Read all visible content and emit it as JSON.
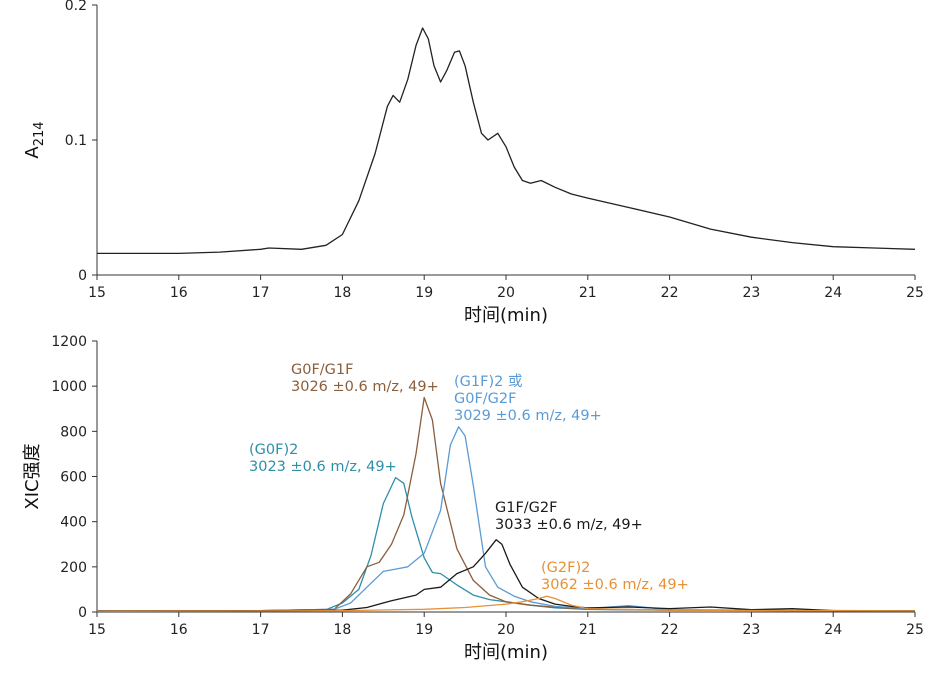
{
  "chart_data": [
    {
      "type": "line",
      "title": "",
      "xlabel": "时间(min)",
      "ylabel": "A214",
      "ylabel_main": "A",
      "ylabel_sub": "214",
      "xlim": [
        15,
        25
      ],
      "ylim": [
        0,
        0.2
      ],
      "xticks": [
        15,
        16,
        17,
        18,
        19,
        20,
        21,
        22,
        23,
        24,
        25
      ],
      "yticks": [
        0,
        0.1,
        0.2
      ],
      "ytick_labels": [
        "0",
        "0.1",
        "0.2"
      ],
      "grid": false,
      "series": [
        {
          "color": "#222222",
          "points": [
            [
              15,
              0.016
            ],
            [
              16,
              0.016
            ],
            [
              16.5,
              0.017
            ],
            [
              17,
              0.019
            ],
            [
              17.1,
              0.02
            ],
            [
              17.5,
              0.019
            ],
            [
              17.8,
              0.022
            ],
            [
              18,
              0.03
            ],
            [
              18.2,
              0.055
            ],
            [
              18.4,
              0.09
            ],
            [
              18.55,
              0.125
            ],
            [
              18.62,
              0.133
            ],
            [
              18.7,
              0.128
            ],
            [
              18.8,
              0.145
            ],
            [
              18.9,
              0.17
            ],
            [
              18.98,
              0.183
            ],
            [
              19.05,
              0.175
            ],
            [
              19.12,
              0.155
            ],
            [
              19.2,
              0.143
            ],
            [
              19.28,
              0.152
            ],
            [
              19.37,
              0.165
            ],
            [
              19.43,
              0.166
            ],
            [
              19.5,
              0.155
            ],
            [
              19.6,
              0.128
            ],
            [
              19.7,
              0.105
            ],
            [
              19.78,
              0.1
            ],
            [
              19.9,
              0.105
            ],
            [
              20,
              0.095
            ],
            [
              20.1,
              0.08
            ],
            [
              20.2,
              0.07
            ],
            [
              20.3,
              0.068
            ],
            [
              20.43,
              0.07
            ],
            [
              20.6,
              0.065
            ],
            [
              20.8,
              0.06
            ],
            [
              21,
              0.057
            ],
            [
              21.5,
              0.05
            ],
            [
              22,
              0.043
            ],
            [
              22.5,
              0.034
            ],
            [
              23,
              0.028
            ],
            [
              23.5,
              0.024
            ],
            [
              24,
              0.021
            ],
            [
              24.5,
              0.02
            ],
            [
              25,
              0.019
            ]
          ]
        }
      ]
    },
    {
      "type": "line",
      "title": "",
      "xlabel": "时间(min)",
      "ylabel": "XIC强度",
      "xlim": [
        15,
        25
      ],
      "ylim": [
        0,
        1200
      ],
      "xticks": [
        15,
        16,
        17,
        18,
        19,
        20,
        21,
        22,
        23,
        24,
        25
      ],
      "yticks": [
        0,
        200,
        400,
        600,
        800,
        1000,
        1200
      ],
      "grid": false,
      "series": [
        {
          "color": "#2e8fa8",
          "points": [
            [
              15,
              5
            ],
            [
              17,
              6
            ],
            [
              17.8,
              10
            ],
            [
              18,
              40
            ],
            [
              18.2,
              100
            ],
            [
              18.35,
              250
            ],
            [
              18.5,
              480
            ],
            [
              18.65,
              595
            ],
            [
              18.75,
              570
            ],
            [
              18.85,
              420
            ],
            [
              19,
              240
            ],
            [
              19.1,
              175
            ],
            [
              19.2,
              170
            ],
            [
              19.4,
              120
            ],
            [
              19.6,
              75
            ],
            [
              19.8,
              55
            ],
            [
              20,
              45
            ],
            [
              20.3,
              30
            ],
            [
              20.6,
              18
            ],
            [
              21,
              12
            ],
            [
              22,
              8
            ],
            [
              25,
              5
            ]
          ]
        },
        {
          "color": "#8b5e3c",
          "points": [
            [
              15,
              5
            ],
            [
              17,
              6
            ],
            [
              17.9,
              12
            ],
            [
              18.1,
              80
            ],
            [
              18.3,
              200
            ],
            [
              18.45,
              220
            ],
            [
              18.6,
              300
            ],
            [
              18.75,
              430
            ],
            [
              18.9,
              700
            ],
            [
              19,
              950
            ],
            [
              19.1,
              850
            ],
            [
              19.2,
              570
            ],
            [
              19.4,
              280
            ],
            [
              19.6,
              140
            ],
            [
              19.8,
              75
            ],
            [
              20,
              45
            ],
            [
              20.3,
              30
            ],
            [
              20.7,
              18
            ],
            [
              21,
              12
            ],
            [
              22,
              9
            ],
            [
              25,
              5
            ]
          ]
        },
        {
          "color": "#5b9bd5",
          "points": [
            [
              15,
              5
            ],
            [
              17,
              6
            ],
            [
              17.9,
              12
            ],
            [
              18.1,
              40
            ],
            [
              18.3,
              110
            ],
            [
              18.5,
              180
            ],
            [
              18.65,
              190
            ],
            [
              18.8,
              200
            ],
            [
              19,
              260
            ],
            [
              19.2,
              450
            ],
            [
              19.32,
              740
            ],
            [
              19.42,
              820
            ],
            [
              19.5,
              780
            ],
            [
              19.6,
              560
            ],
            [
              19.75,
              200
            ],
            [
              19.9,
              110
            ],
            [
              20.1,
              70
            ],
            [
              20.3,
              45
            ],
            [
              20.6,
              25
            ],
            [
              21,
              15
            ],
            [
              21.5,
              28
            ],
            [
              22,
              10
            ],
            [
              25,
              5
            ]
          ]
        },
        {
          "color": "#1a1a1a",
          "points": [
            [
              15,
              5
            ],
            [
              17,
              6
            ],
            [
              18,
              8
            ],
            [
              18.3,
              20
            ],
            [
              18.6,
              50
            ],
            [
              18.9,
              75
            ],
            [
              19,
              100
            ],
            [
              19.2,
              110
            ],
            [
              19.4,
              170
            ],
            [
              19.6,
              200
            ],
            [
              19.75,
              260
            ],
            [
              19.88,
              320
            ],
            [
              19.95,
              300
            ],
            [
              20.05,
              210
            ],
            [
              20.2,
              110
            ],
            [
              20.4,
              60
            ],
            [
              20.6,
              35
            ],
            [
              20.8,
              25
            ],
            [
              21,
              18
            ],
            [
              21.5,
              22
            ],
            [
              22,
              15
            ],
            [
              22.5,
              22
            ],
            [
              23,
              10
            ],
            [
              23.5,
              15
            ],
            [
              24,
              6
            ],
            [
              25,
              5
            ]
          ]
        },
        {
          "color": "#e69138",
          "points": [
            [
              15,
              4
            ],
            [
              17,
              5
            ],
            [
              18,
              6
            ],
            [
              19,
              12
            ],
            [
              19.5,
              20
            ],
            [
              20,
              35
            ],
            [
              20.2,
              45
            ],
            [
              20.4,
              60
            ],
            [
              20.5,
              70
            ],
            [
              20.6,
              60
            ],
            [
              20.8,
              30
            ],
            [
              21,
              15
            ],
            [
              22,
              8
            ],
            [
              25,
              5
            ]
          ]
        }
      ],
      "annotations": [
        {
          "color": "#8b5e3c",
          "lines": [
            "G0F/G1F",
            "3026 ±0.6 m/z, 49+"
          ]
        },
        {
          "color": "#5b9bd5",
          "lines": [
            "(G1F)2 或",
            "G0F/G2F",
            "3029 ±0.6 m/z, 49+"
          ]
        },
        {
          "color": "#2e8fa8",
          "lines": [
            "(G0F)2",
            "3023 ±0.6 m/z, 49+"
          ]
        },
        {
          "color": "#1a1a1a",
          "lines": [
            "G1F/G2F",
            "3033 ±0.6 m/z, 49+"
          ]
        },
        {
          "color": "#e69138",
          "lines": [
            "(G2F)2",
            "3062 ±0.6 m/z, 49+"
          ]
        }
      ]
    }
  ]
}
